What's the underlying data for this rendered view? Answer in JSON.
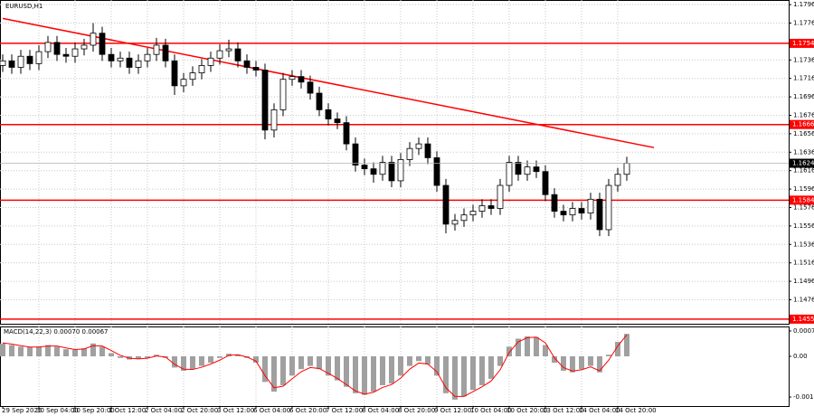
{
  "chart_data": {
    "type": "candlestick",
    "title": "EURUSD,H1",
    "categories": [
      "29 Sep 2025",
      null,
      null,
      null,
      "30 Sep 04:00",
      null,
      null,
      null,
      "30 Sep 20:00",
      null,
      null,
      null,
      "1 Oct 12:00",
      null,
      null,
      null,
      "2 Oct 04:00",
      null,
      null,
      null,
      "2 Oct 20:00",
      null,
      null,
      null,
      "3 Oct 12:00",
      null,
      null,
      null,
      "6 Oct 04:00",
      null,
      null,
      null,
      "6 Oct 20:00",
      null,
      null,
      null,
      "7 Oct 12:00",
      null,
      null,
      null,
      "8 Oct 04:00",
      null,
      null,
      null,
      "8 Oct 20:00",
      null,
      null,
      null,
      "9 Oct 12:00",
      null,
      null,
      null,
      "10 Oct 04:00",
      null,
      null,
      null,
      "10 Oct 20:00",
      null,
      null,
      null,
      "13 Oct 12:00",
      null,
      null,
      null,
      "14 Oct 04:00",
      null,
      null,
      null,
      "14 Oct 20:00",
      null
    ],
    "candles": [
      [
        1.173,
        1.1742,
        1.1723,
        1.1735
      ],
      [
        1.1735,
        1.1742,
        1.1721,
        1.1728
      ],
      [
        1.1728,
        1.1747,
        1.1721,
        1.174
      ],
      [
        1.174,
        1.1747,
        1.1725,
        1.1732
      ],
      [
        1.1732,
        1.1752,
        1.1725,
        1.1745
      ],
      [
        1.1745,
        1.1762,
        1.1738,
        1.1755
      ],
      [
        1.1755,
        1.1762,
        1.1735,
        1.1742
      ],
      [
        1.1742,
        1.1749,
        1.1733,
        1.174
      ],
      [
        1.174,
        1.1755,
        1.1733,
        1.1748
      ],
      [
        1.1748,
        1.1759,
        1.1741,
        1.1752
      ],
      [
        1.1752,
        1.1776,
        1.1745,
        1.1765
      ],
      [
        1.1765,
        1.1772,
        1.1735,
        1.1742
      ],
      [
        1.1742,
        1.1749,
        1.1728,
        1.1735
      ],
      [
        1.1735,
        1.1745,
        1.1728,
        1.1738
      ],
      [
        1.1738,
        1.1745,
        1.1721,
        1.1728
      ],
      [
        1.1728,
        1.1742,
        1.1721,
        1.1735
      ],
      [
        1.1735,
        1.1749,
        1.1728,
        1.1742
      ],
      [
        1.1742,
        1.176,
        1.1735,
        1.1752
      ],
      [
        1.1752,
        1.1759,
        1.1728,
        1.1735
      ],
      [
        1.1735,
        1.1742,
        1.1698,
        1.1708
      ],
      [
        1.1708,
        1.1722,
        1.1701,
        1.1715
      ],
      [
        1.1715,
        1.1729,
        1.1708,
        1.1722
      ],
      [
        1.1722,
        1.1737,
        1.1715,
        1.173
      ],
      [
        1.173,
        1.1745,
        1.1723,
        1.1738
      ],
      [
        1.1738,
        1.1753,
        1.1731,
        1.1746
      ],
      [
        1.1746,
        1.1758,
        1.1739,
        1.1748
      ],
      [
        1.1748,
        1.1755,
        1.1728,
        1.1735
      ],
      [
        1.1735,
        1.1742,
        1.1721,
        1.1728
      ],
      [
        1.1728,
        1.1735,
        1.1718,
        1.1725
      ],
      [
        1.1725,
        1.1732,
        1.165,
        1.166
      ],
      [
        1.166,
        1.1689,
        1.1652,
        1.1682
      ],
      [
        1.1682,
        1.1722,
        1.1675,
        1.1715
      ],
      [
        1.1715,
        1.1725,
        1.1708,
        1.1718
      ],
      [
        1.1718,
        1.1725,
        1.1705,
        1.1712
      ],
      [
        1.1712,
        1.1719,
        1.1693,
        1.17
      ],
      [
        1.17,
        1.1707,
        1.1675,
        1.1682
      ],
      [
        1.1682,
        1.1689,
        1.1665,
        1.1672
      ],
      [
        1.1672,
        1.1679,
        1.1661,
        1.1668
      ],
      [
        1.1668,
        1.1675,
        1.1638,
        1.1645
      ],
      [
        1.1645,
        1.1652,
        1.1615,
        1.1622
      ],
      [
        1.1622,
        1.1629,
        1.1611,
        1.1618
      ],
      [
        1.1618,
        1.1625,
        1.1603,
        1.1612
      ],
      [
        1.1612,
        1.1632,
        1.1605,
        1.1625
      ],
      [
        1.1625,
        1.1632,
        1.1598,
        1.1605
      ],
      [
        1.1605,
        1.1635,
        1.1598,
        1.1628
      ],
      [
        1.1628,
        1.1647,
        1.1621,
        1.164
      ],
      [
        1.164,
        1.1652,
        1.1633,
        1.1645
      ],
      [
        1.1645,
        1.1652,
        1.1623,
        1.163
      ],
      [
        1.163,
        1.1637,
        1.1593,
        1.16
      ],
      [
        1.16,
        1.1607,
        1.1548,
        1.1558
      ],
      [
        1.1558,
        1.1569,
        1.1551,
        1.1562
      ],
      [
        1.1562,
        1.1575,
        1.1555,
        1.1568
      ],
      [
        1.1568,
        1.1579,
        1.1561,
        1.1572
      ],
      [
        1.1572,
        1.1585,
        1.1565,
        1.1578
      ],
      [
        1.1578,
        1.1585,
        1.1568,
        1.1575
      ],
      [
        1.1575,
        1.1607,
        1.1568,
        1.16
      ],
      [
        1.16,
        1.1632,
        1.1593,
        1.1625
      ],
      [
        1.1625,
        1.1632,
        1.1605,
        1.1612
      ],
      [
        1.1612,
        1.1627,
        1.1605,
        1.162
      ],
      [
        1.162,
        1.1627,
        1.1608,
        1.1615
      ],
      [
        1.1615,
        1.1622,
        1.1583,
        1.159
      ],
      [
        1.159,
        1.1597,
        1.1565,
        1.1572
      ],
      [
        1.1572,
        1.1579,
        1.1561,
        1.1568
      ],
      [
        1.1568,
        1.1582,
        1.1561,
        1.1575
      ],
      [
        1.1575,
        1.1582,
        1.1563,
        1.157
      ],
      [
        1.157,
        1.1592,
        1.1563,
        1.1585
      ],
      [
        1.1585,
        1.1592,
        1.1545,
        1.1552
      ],
      [
        1.1552,
        1.1607,
        1.1545,
        1.16
      ],
      [
        1.16,
        1.1619,
        1.1593,
        1.1612
      ],
      [
        1.1612,
        1.1631,
        1.1605,
        1.1624
      ]
    ],
    "ylim": [
      1.145,
      1.1801
    ],
    "yticks": [
      1.1796,
      1.1776,
      1.1736,
      1.1716,
      1.1696,
      1.1676,
      1.1656,
      1.1636,
      1.1616,
      1.1596,
      1.1576,
      1.1556,
      1.1536,
      1.1516,
      1.1496,
      1.1476
    ],
    "grid": true,
    "levels": [
      1.1754,
      1.1666,
      1.1584,
      1.1455
    ],
    "level_color": "#ff0000",
    "trendline": {
      "x": [
        0,
        72
      ],
      "y": [
        1.1781,
        1.1641
      ],
      "color": "#ff0000"
    },
    "macd": {
      "label": "MACD(14,22,3) 0.00070 0.00067",
      "histogram_color": "#a0a0a0",
      "signal_color": "#ff0000",
      "values": [
        0.0004,
        0.00035,
        0.0003,
        0.00028,
        0.0003,
        0.00035,
        0.0003,
        0.00022,
        0.0002,
        0.00025,
        0.0004,
        0.0003,
        0.0001,
        -5e-05,
        -0.0001,
        -8e-05,
        -5e-05,
        5e-05,
        -5e-05,
        -0.00035,
        -0.00045,
        -0.0004,
        -0.0003,
        -0.0002,
        -5e-05,
        8e-05,
        5e-05,
        -5e-05,
        -0.0002,
        -0.0008,
        -0.0011,
        -0.0009,
        -0.0006,
        -0.0004,
        -0.0003,
        -0.0004,
        -0.0006,
        -0.00075,
        -0.00095,
        -0.00115,
        -0.0012,
        -0.0011,
        -0.0009,
        -0.00085,
        -0.0006,
        -0.0003,
        -0.00015,
        -0.00025,
        -0.0006,
        -0.00115,
        -0.00135,
        -0.00125,
        -0.00105,
        -0.0009,
        -0.0007,
        -0.0003,
        0.0003,
        0.00055,
        0.00062,
        0.0006,
        0.00035,
        -0.0002,
        -0.00045,
        -0.0005,
        -0.0004,
        -0.0003,
        -0.0005,
        5e-05,
        0.00045,
        0.0007
      ],
      "signal": [
        0.00042,
        0.00038,
        0.00033,
        0.00029,
        0.00029,
        0.00032,
        0.00032,
        0.00026,
        0.00021,
        0.00023,
        0.00033,
        0.00032,
        0.00018,
        3e-05,
        -6e-05,
        -8e-05,
        -6e-05,
        1e-05,
        -2e-05,
        -0.00025,
        -0.0004,
        -0.00041,
        -0.00034,
        -0.00024,
        -0.00012,
        3e-05,
        5e-05,
        -2e-05,
        -0.00015,
        -0.0006,
        -0.00098,
        -0.00093,
        -0.0007,
        -0.00048,
        -0.00035,
        -0.00038,
        -0.00053,
        -0.00069,
        -0.00088,
        -0.00108,
        -0.00118,
        -0.00112,
        -0.00097,
        -0.00088,
        -0.00068,
        -0.0004,
        -0.00021,
        -0.00024,
        -0.00048,
        -0.00098,
        -0.00125,
        -0.00125,
        -0.0011,
        -0.00095,
        -0.00077,
        -0.00042,
        0.00012,
        0.00045,
        0.00058,
        0.0006,
        0.00042,
        -5e-05,
        -0.00035,
        -0.00046,
        -0.00042,
        -0.00033,
        -0.00045,
        -0.00012,
        0.00032,
        0.00067
      ],
      "ylim": [
        -0.00155,
        0.00093
      ],
      "yticks": [
        0.00079,
        {
          "value": 0,
          "label": "0.00"
        },
        -0.00127
      ]
    }
  }
}
